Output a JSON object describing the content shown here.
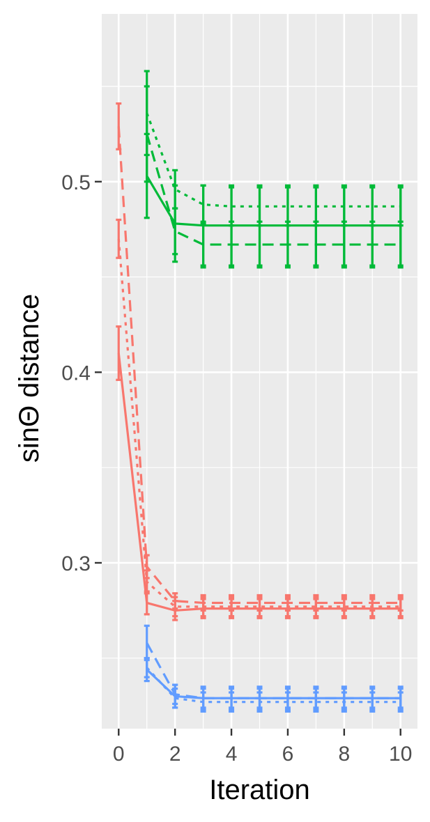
{
  "chart_data": {
    "type": "line",
    "xlabel": "Iteration",
    "ylabel": "sinΘ distance",
    "xlim": [
      -0.6,
      10.6
    ],
    "ylim": [
      0.213,
      0.588
    ],
    "x_ticks": [
      0,
      2,
      4,
      6,
      8,
      10
    ],
    "x_tick_labels": [
      "0",
      "2",
      "4",
      "6",
      "8",
      "10"
    ],
    "y_ticks": [
      0.3,
      0.4,
      0.5
    ],
    "y_tick_labels": [
      "0.3",
      "0.4",
      "0.5"
    ],
    "y_minor_ticks": [
      0.25,
      0.35,
      0.45,
      0.55
    ],
    "x_minor_ticks": [
      1,
      3,
      5,
      7,
      9
    ],
    "grid": true,
    "legend": "none",
    "colors": {
      "panel_background": "#ebebeb",
      "grid_line": "#ffffff",
      "red": "#f8766d",
      "green": "#00ba38",
      "blue": "#619cff",
      "tick_label": "#4d4d4d",
      "tick_mark": "#333333"
    },
    "series": [
      {
        "color": "#f8766d",
        "linetype": "solid",
        "x": [
          0,
          1,
          2,
          3,
          4,
          5,
          6,
          7,
          8,
          9,
          10
        ],
        "y": [
          0.41,
          0.279,
          0.275,
          0.276,
          0.276,
          0.276,
          0.276,
          0.276,
          0.276,
          0.276,
          0.276
        ],
        "err": [
          0.014,
          0.006,
          0.005,
          0.005,
          0.005,
          0.005,
          0.005,
          0.005,
          0.005,
          0.005,
          0.005
        ]
      },
      {
        "color": "#f8766d",
        "linetype": "dashed",
        "x": [
          0,
          1,
          2,
          3,
          4,
          5,
          6,
          7,
          8,
          9,
          10
        ],
        "y": [
          0.529,
          0.298,
          0.28,
          0.279,
          0.279,
          0.279,
          0.279,
          0.279,
          0.279,
          0.279,
          0.279
        ],
        "err": [
          0.012,
          0.006,
          0.004,
          0.004,
          0.004,
          0.004,
          0.004,
          0.004,
          0.004,
          0.004,
          0.004
        ]
      },
      {
        "color": "#f8766d",
        "linetype": "dotted",
        "x": [
          0,
          1,
          2,
          3,
          4,
          5,
          6,
          7,
          8,
          9,
          10
        ],
        "y": [
          0.47,
          0.29,
          0.277,
          0.277,
          0.277,
          0.277,
          0.277,
          0.277,
          0.277,
          0.277,
          0.277
        ],
        "err": [
          0.01,
          0.006,
          0.005,
          0.005,
          0.005,
          0.005,
          0.005,
          0.005,
          0.005,
          0.005,
          0.005
        ]
      },
      {
        "color": "#00ba38",
        "linetype": "solid",
        "x": [
          1,
          2,
          3,
          4,
          5,
          6,
          7,
          8,
          9,
          10
        ],
        "y": [
          0.503,
          0.478,
          0.477,
          0.477,
          0.477,
          0.477,
          0.477,
          0.477,
          0.477,
          0.477
        ],
        "err": [
          0.022,
          0.02,
          0.021,
          0.021,
          0.021,
          0.021,
          0.021,
          0.021,
          0.021,
          0.021
        ]
      },
      {
        "color": "#00ba38",
        "linetype": "dashed",
        "x": [
          1,
          2,
          3,
          4,
          5,
          6,
          7,
          8,
          9,
          10
        ],
        "y": [
          0.525,
          0.474,
          0.467,
          0.467,
          0.467,
          0.467,
          0.467,
          0.467,
          0.467,
          0.467
        ],
        "err": [
          0.025,
          0.012,
          0.012,
          0.012,
          0.012,
          0.012,
          0.012,
          0.012,
          0.012,
          0.012
        ]
      },
      {
        "color": "#00ba38",
        "linetype": "dotted",
        "x": [
          1,
          2,
          3,
          4,
          5,
          6,
          7,
          8,
          9,
          10
        ],
        "y": [
          0.536,
          0.496,
          0.488,
          0.487,
          0.487,
          0.487,
          0.487,
          0.487,
          0.487,
          0.487
        ],
        "err": [
          0.022,
          0.01,
          0.01,
          0.01,
          0.01,
          0.01,
          0.01,
          0.01,
          0.01,
          0.01
        ]
      },
      {
        "color": "#619cff",
        "linetype": "solid",
        "x": [
          1,
          2,
          3,
          4,
          5,
          6,
          7,
          8,
          9,
          10
        ],
        "y": [
          0.244,
          0.23,
          0.229,
          0.229,
          0.229,
          0.229,
          0.229,
          0.229,
          0.229,
          0.229
        ],
        "err": [
          0.006,
          0.006,
          0.006,
          0.006,
          0.006,
          0.006,
          0.006,
          0.006,
          0.006,
          0.006
        ]
      },
      {
        "color": "#619cff",
        "linetype": "dashed",
        "x": [
          1,
          2,
          3,
          4,
          5,
          6,
          7,
          8,
          9,
          10
        ],
        "y": [
          0.258,
          0.231,
          0.229,
          0.229,
          0.229,
          0.229,
          0.229,
          0.229,
          0.229,
          0.229
        ],
        "err": [
          0.009,
          0.005,
          0.005,
          0.005,
          0.005,
          0.005,
          0.005,
          0.005,
          0.005,
          0.005
        ]
      },
      {
        "color": "#619cff",
        "linetype": "dotted",
        "x": [
          1,
          2,
          3,
          4,
          5,
          6,
          7,
          8,
          9,
          10
        ],
        "y": [
          0.245,
          0.229,
          0.227,
          0.227,
          0.227,
          0.227,
          0.227,
          0.227,
          0.227,
          0.227
        ],
        "err": [
          0.005,
          0.005,
          0.005,
          0.005,
          0.005,
          0.005,
          0.005,
          0.005,
          0.005,
          0.005
        ]
      }
    ]
  }
}
